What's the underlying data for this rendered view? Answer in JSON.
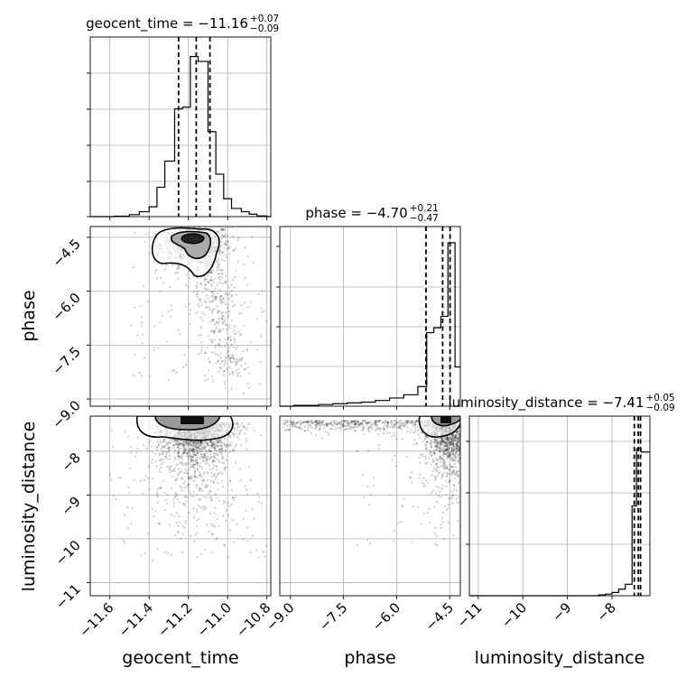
{
  "chart_data": [
    {
      "type": "histogram",
      "panel": "geocent_time marginal",
      "title_main": "geocent_time = −11.16",
      "title_sup": "+0.07",
      "title_sub": "−0.09",
      "x_range": [
        -11.7,
        -10.78
      ],
      "grid": true,
      "bins": [
        [
          -11.7,
          0.0
        ],
        [
          -11.62,
          0.0
        ],
        [
          -11.58,
          0.003
        ],
        [
          -11.5,
          0.012
        ],
        [
          -11.45,
          0.03
        ],
        [
          -11.4,
          0.06
        ],
        [
          -11.36,
          0.18
        ],
        [
          -11.32,
          0.34
        ],
        [
          -11.27,
          0.66
        ],
        [
          -11.23,
          0.67
        ],
        [
          -11.19,
          0.98
        ],
        [
          -11.15,
          0.95
        ],
        [
          -11.1,
          0.52
        ],
        [
          -11.06,
          0.26
        ],
        [
          -11.02,
          0.11
        ],
        [
          -10.98,
          0.05
        ],
        [
          -10.93,
          0.03
        ],
        [
          -10.89,
          0.015
        ],
        [
          -10.85,
          0.004
        ],
        [
          -10.8,
          0.0
        ]
      ],
      "quantiles": [
        -11.25,
        -11.16,
        -11.09
      ]
    },
    {
      "type": "histogram",
      "panel": "phase marginal",
      "title_main": "phase = −4.70",
      "title_sup": "+0.21",
      "title_sub": "−0.47",
      "x_range": [
        -9.3,
        -4.2
      ],
      "grid": true,
      "bins": [
        [
          -9.3,
          0.0
        ],
        [
          -8.9,
          0.005
        ],
        [
          -8.2,
          0.01
        ],
        [
          -7.8,
          0.015
        ],
        [
          -7.4,
          0.02
        ],
        [
          -7.0,
          0.025
        ],
        [
          -6.6,
          0.035
        ],
        [
          -6.2,
          0.05
        ],
        [
          -5.8,
          0.07
        ],
        [
          -5.4,
          0.12
        ],
        [
          -5.15,
          0.45
        ],
        [
          -4.95,
          0.48
        ],
        [
          -4.75,
          0.55
        ],
        [
          -4.55,
          1.0
        ],
        [
          -4.35,
          0.24
        ]
      ],
      "quantiles": [
        -5.17,
        -4.7,
        -4.49
      ]
    },
    {
      "type": "histogram",
      "panel": "luminosity_distance marginal",
      "title_main": "luminosity_distance = −7.41",
      "title_sup": "+0.05",
      "title_sub": "−0.09",
      "x_range": [
        -11.2,
        -7.15
      ],
      "grid": true,
      "bins": [
        [
          -11.2,
          0.0
        ],
        [
          -8.3,
          0.005
        ],
        [
          -8.15,
          0.01
        ],
        [
          -8.0,
          0.02
        ],
        [
          -7.85,
          0.04
        ],
        [
          -7.7,
          0.07
        ],
        [
          -7.55,
          0.55
        ],
        [
          -7.45,
          0.9
        ],
        [
          -7.35,
          0.88
        ],
        [
          -7.25,
          0.88
        ]
      ],
      "quantiles": [
        -7.5,
        -7.41,
        -7.36
      ]
    },
    {
      "type": "scatter",
      "panel": "geocent_time vs phase",
      "x_range": [
        -11.7,
        -10.78
      ],
      "y_range": [
        -9.2,
        -4.2
      ],
      "density_peak": [
        -11.16,
        -4.65
      ],
      "contours": 3
    },
    {
      "type": "scatter",
      "panel": "geocent_time vs luminosity_distance",
      "x_range": [
        -11.7,
        -10.78
      ],
      "y_range": [
        -11.3,
        -7.2
      ],
      "density_peak": [
        -11.17,
        -7.38
      ],
      "contours": 3
    },
    {
      "type": "scatter",
      "panel": "phase vs luminosity_distance",
      "x_range": [
        -9.3,
        -4.2
      ],
      "y_range": [
        -11.3,
        -7.2
      ],
      "density_peak": [
        -4.55,
        -7.42
      ],
      "contours": 3
    }
  ],
  "axes": {
    "x_labels": [
      "geocent_time",
      "phase",
      "luminosity_distance"
    ],
    "y_labels": [
      "phase",
      "luminosity_distance"
    ],
    "geocent_time_ticks": [
      {
        "value": -11.6,
        "label": "−11.6"
      },
      {
        "value": -11.4,
        "label": "−11.4"
      },
      {
        "value": -11.2,
        "label": "−11.2"
      },
      {
        "value": -11.0,
        "label": "−11.0"
      },
      {
        "value": -10.8,
        "label": "−10.8"
      }
    ],
    "phase_ticks": [
      {
        "value": -9.0,
        "label": "−9.0"
      },
      {
        "value": -7.5,
        "label": "−7.5"
      },
      {
        "value": -6.0,
        "label": "−6.0"
      },
      {
        "value": -4.5,
        "label": "−4.5"
      }
    ],
    "luminosity_distance_ticks": [
      {
        "value": -11,
        "label": "−11"
      },
      {
        "value": -10,
        "label": "−10"
      },
      {
        "value": -9,
        "label": "−9"
      },
      {
        "value": -8,
        "label": "−8"
      }
    ]
  }
}
